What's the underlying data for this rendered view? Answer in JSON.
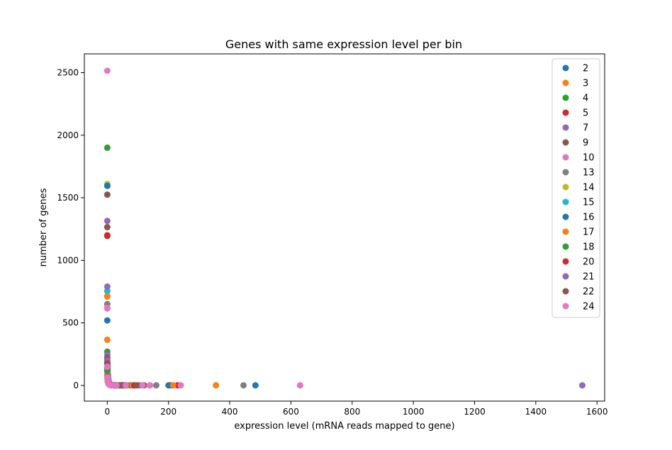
{
  "chart_data": {
    "type": "scatter",
    "title": "Genes with same expression level per bin",
    "xlabel": "expression level (mRNA reads mapped to gene)",
    "ylabel": "number of genes",
    "xlim": [
      -75,
      1625
    ],
    "ylim": [
      -125,
      2650
    ],
    "xticks": [
      0,
      200,
      400,
      600,
      800,
      1000,
      1200,
      1400,
      1600
    ],
    "yticks": [
      0,
      500,
      1000,
      1500,
      2000,
      2500
    ],
    "grid": false,
    "legend_position": "top-right",
    "series": [
      {
        "name": "2",
        "color": "#1f77b4",
        "points": [
          [
            0,
            1600
          ],
          [
            0,
            520
          ],
          [
            1,
            150
          ],
          [
            2,
            80
          ],
          [
            3,
            50
          ],
          [
            5,
            25
          ],
          [
            8,
            12
          ],
          [
            12,
            6
          ],
          [
            20,
            3
          ],
          [
            35,
            1
          ],
          [
            60,
            1
          ],
          [
            200,
            1
          ],
          [
            484,
            1
          ]
        ]
      },
      {
        "name": "3",
        "color": "#ff7f0e",
        "points": [
          [
            0,
            715
          ],
          [
            0,
            365
          ],
          [
            1,
            140
          ],
          [
            2,
            90
          ],
          [
            3,
            55
          ],
          [
            5,
            30
          ],
          [
            8,
            14
          ],
          [
            15,
            5
          ],
          [
            25,
            2
          ],
          [
            45,
            1
          ],
          [
            85,
            1
          ],
          [
            210,
            1
          ],
          [
            355,
            1
          ]
        ]
      },
      {
        "name": "4",
        "color": "#2ca02c",
        "points": [
          [
            0,
            1900
          ],
          [
            0,
            270
          ],
          [
            1,
            160
          ],
          [
            2,
            70
          ],
          [
            4,
            35
          ],
          [
            6,
            20
          ],
          [
            10,
            8
          ],
          [
            18,
            3
          ],
          [
            30,
            1
          ],
          [
            55,
            1
          ],
          [
            105,
            1
          ]
        ]
      },
      {
        "name": "5",
        "color": "#d62728",
        "points": [
          [
            0,
            1195
          ],
          [
            0,
            190
          ],
          [
            1,
            110
          ],
          [
            2,
            60
          ],
          [
            4,
            30
          ],
          [
            7,
            15
          ],
          [
            12,
            6
          ],
          [
            22,
            2
          ],
          [
            40,
            1
          ],
          [
            75,
            1
          ],
          [
            230,
            1
          ]
        ]
      },
      {
        "name": "7",
        "color": "#9467bd",
        "points": [
          [
            0,
            1315
          ],
          [
            0,
            245
          ],
          [
            1,
            130
          ],
          [
            2,
            75
          ],
          [
            4,
            40
          ],
          [
            6,
            22
          ],
          [
            10,
            10
          ],
          [
            17,
            4
          ],
          [
            30,
            1
          ],
          [
            50,
            1
          ],
          [
            1552,
            1
          ]
        ]
      },
      {
        "name": "9",
        "color": "#8c564b",
        "points": [
          [
            0,
            1525
          ],
          [
            0,
            220
          ],
          [
            1,
            125
          ],
          [
            2,
            65
          ],
          [
            3,
            45
          ],
          [
            5,
            24
          ],
          [
            9,
            11
          ],
          [
            16,
            4
          ],
          [
            28,
            1
          ],
          [
            48,
            1
          ],
          [
            120,
            1
          ]
        ]
      },
      {
        "name": "10",
        "color": "#e377c2",
        "points": [
          [
            0,
            2515
          ],
          [
            0,
            615
          ],
          [
            1,
            150
          ],
          [
            2,
            85
          ],
          [
            4,
            42
          ],
          [
            6,
            20
          ],
          [
            11,
            8
          ],
          [
            19,
            3
          ],
          [
            33,
            1
          ],
          [
            58,
            1
          ],
          [
            138,
            1
          ],
          [
            630,
            1
          ]
        ]
      },
      {
        "name": "13",
        "color": "#7f7f7f",
        "points": [
          [
            0,
            650
          ],
          [
            0,
            135
          ],
          [
            1,
            95
          ],
          [
            2,
            55
          ],
          [
            4,
            28
          ],
          [
            7,
            13
          ],
          [
            12,
            5
          ],
          [
            21,
            2
          ],
          [
            38,
            1
          ],
          [
            65,
            1
          ],
          [
            160,
            1
          ],
          [
            445,
            1
          ]
        ]
      },
      {
        "name": "14",
        "color": "#bcbd22",
        "points": [
          [
            0,
            1610
          ],
          [
            0,
            110
          ],
          [
            1,
            70
          ],
          [
            2,
            40
          ],
          [
            4,
            20
          ],
          [
            7,
            9
          ],
          [
            13,
            3
          ],
          [
            24,
            1
          ],
          [
            42,
            1
          ],
          [
            70,
            1
          ]
        ]
      },
      {
        "name": "15",
        "color": "#17becf",
        "points": [
          [
            0,
            755
          ],
          [
            0,
            125
          ],
          [
            1,
            80
          ],
          [
            2,
            45
          ],
          [
            3,
            25
          ],
          [
            6,
            12
          ],
          [
            10,
            5
          ],
          [
            18,
            2
          ],
          [
            32,
            1
          ],
          [
            62,
            1
          ]
        ]
      },
      {
        "name": "16",
        "color": "#1f77b4",
        "points": [
          [
            0,
            1595
          ],
          [
            0,
            100
          ],
          [
            1,
            65
          ],
          [
            2,
            35
          ],
          [
            4,
            18
          ],
          [
            7,
            8
          ],
          [
            13,
            3
          ],
          [
            25,
            1
          ],
          [
            44,
            1
          ],
          [
            78,
            1
          ],
          [
            205,
            1
          ]
        ]
      },
      {
        "name": "17",
        "color": "#ff7f0e",
        "points": [
          [
            0,
            710
          ],
          [
            0,
            95
          ],
          [
            1,
            60
          ],
          [
            2,
            32
          ],
          [
            4,
            16
          ],
          [
            7,
            7
          ],
          [
            14,
            3
          ],
          [
            26,
            1
          ],
          [
            46,
            1
          ],
          [
            82,
            1
          ],
          [
            215,
            1
          ]
        ]
      },
      {
        "name": "18",
        "color": "#2ca02c",
        "points": [
          [
            0,
            120
          ],
          [
            1,
            55
          ],
          [
            2,
            30
          ],
          [
            4,
            15
          ],
          [
            7,
            6
          ],
          [
            13,
            2
          ],
          [
            23,
            1
          ],
          [
            41,
            1
          ],
          [
            90,
            1
          ]
        ]
      },
      {
        "name": "20",
        "color": "#d62728",
        "points": [
          [
            0,
            1200
          ],
          [
            0,
            180
          ],
          [
            1,
            60
          ],
          [
            2,
            28
          ],
          [
            4,
            14
          ],
          [
            8,
            6
          ],
          [
            15,
            2
          ],
          [
            27,
            1
          ],
          [
            49,
            1
          ],
          [
            88,
            1
          ]
        ]
      },
      {
        "name": "21",
        "color": "#9467bd",
        "points": [
          [
            0,
            790
          ],
          [
            0,
            200
          ],
          [
            1,
            75
          ],
          [
            2,
            35
          ],
          [
            4,
            17
          ],
          [
            8,
            7
          ],
          [
            15,
            3
          ],
          [
            27,
            1
          ],
          [
            52,
            1
          ],
          [
            100,
            1
          ]
        ]
      },
      {
        "name": "22",
        "color": "#8c564b",
        "points": [
          [
            0,
            1265
          ],
          [
            0,
            175
          ],
          [
            1,
            70
          ],
          [
            2,
            30
          ],
          [
            4,
            15
          ],
          [
            8,
            6
          ],
          [
            15,
            2
          ],
          [
            28,
            1
          ],
          [
            54,
            1
          ],
          [
            95,
            1
          ]
        ]
      },
      {
        "name": "24",
        "color": "#e377c2",
        "points": [
          [
            0,
            620
          ],
          [
            0,
            150
          ],
          [
            1,
            65
          ],
          [
            2,
            30
          ],
          [
            4,
            14
          ],
          [
            8,
            6
          ],
          [
            16,
            2
          ],
          [
            30,
            1
          ],
          [
            60,
            1
          ],
          [
            115,
            1
          ],
          [
            140,
            1
          ],
          [
            240,
            1
          ]
        ]
      }
    ]
  }
}
